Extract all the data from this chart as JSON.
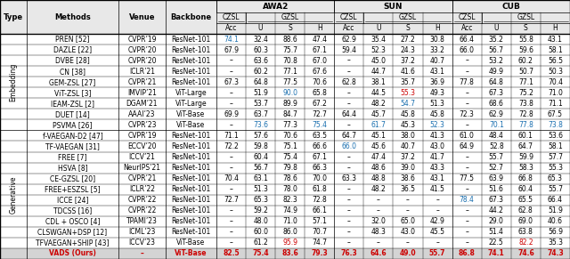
{
  "embedding_rows": [
    {
      "method": "PREN [52]",
      "ref_blue": true,
      "venue": "CVPR’19",
      "backbone": "ResNet-101",
      "awa2_czsl": "74.1",
      "awa2_u": "32.4",
      "awa2_s": "88.6",
      "awa2_h": "47.4",
      "sun_czsl": "62.9",
      "sun_u": "35.4",
      "sun_s": "27.2",
      "sun_h": "30.8",
      "cub_czsl": "66.4",
      "cub_u": "35.2",
      "cub_s": "55.8",
      "cub_h": "43.1",
      "awa2_czsl_blue": true
    },
    {
      "method": "DAZLE [22]",
      "ref_blue": true,
      "venue": "CVPR’20",
      "backbone": "ResNet-101",
      "awa2_czsl": "67.9",
      "awa2_u": "60.3",
      "awa2_s": "75.7",
      "awa2_h": "67.1",
      "sun_czsl": "59.4",
      "sun_u": "52.3",
      "sun_s": "24.3",
      "sun_h": "33.2",
      "cub_czsl": "66.0",
      "cub_u": "56.7",
      "cub_s": "59.6",
      "cub_h": "58.1"
    },
    {
      "method": "DVBE [28]",
      "ref_blue": true,
      "venue": "CVPR’20",
      "backbone": "ResNet-101",
      "awa2_czsl": "–",
      "awa2_u": "63.6",
      "awa2_s": "70.8",
      "awa2_h": "67.0",
      "sun_czsl": "–",
      "sun_u": "45.0",
      "sun_s": "37.2",
      "sun_h": "40.7",
      "cub_czsl": "–",
      "cub_u": "53.2",
      "cub_s": "60.2",
      "cub_h": "56.5"
    },
    {
      "method": "CN [38]",
      "ref_blue": true,
      "venue": "ICLR’21",
      "backbone": "ResNet-101",
      "awa2_czsl": "–",
      "awa2_u": "60.2",
      "awa2_s": "77.1",
      "awa2_h": "67.6",
      "sun_czsl": "–",
      "sun_u": "44.7",
      "sun_s": "41.6",
      "sun_h": "43.1",
      "cub_czsl": "–",
      "cub_u": "49.9",
      "cub_s": "50.7",
      "cub_h": "50.3"
    },
    {
      "method": "GEM-ZSL [27]",
      "ref_blue": true,
      "venue": "CVPR’21",
      "backbone": "ResNet-101",
      "awa2_czsl": "67.3",
      "awa2_u": "64.8",
      "awa2_s": "77.5",
      "awa2_h": "70.6",
      "sun_czsl": "62.8",
      "sun_u": "38.1",
      "sun_s": "35.7",
      "sun_h": "36.9",
      "cub_czsl": "77.8",
      "cub_u": "64.8",
      "cub_s": "77.1",
      "cub_h": "70.4"
    },
    {
      "method": "ViT-ZSL [3]",
      "ref_blue": true,
      "venue": "IMVIP’21",
      "backbone": "ViT-Large",
      "awa2_czsl": "–",
      "awa2_u": "51.9",
      "awa2_s": "90.0",
      "awa2_h": "65.8",
      "sun_czsl": "–",
      "sun_u": "44.5",
      "sun_s": "55.3",
      "sun_h": "49.3",
      "cub_czsl": "–",
      "cub_u": "67.3",
      "cub_s": "75.2",
      "cub_h": "71.0",
      "awa2_s_blue": true,
      "sun_s_red": true
    },
    {
      "method": "IEAM-ZSL [2]",
      "ref_blue": true,
      "venue": "DGAM’21",
      "backbone": "ViT-Large",
      "awa2_czsl": "–",
      "awa2_u": "53.7",
      "awa2_s": "89.9",
      "awa2_h": "67.2",
      "sun_czsl": "–",
      "sun_u": "48.2",
      "sun_s": "54.7",
      "sun_h": "51.3",
      "cub_czsl": "–",
      "cub_u": "68.6",
      "cub_s": "73.8",
      "cub_h": "71.1",
      "sun_s_blue": true
    },
    {
      "method": "DUET [14]",
      "ref_blue": true,
      "venue": "AAAI’23",
      "backbone": "ViT-Base",
      "awa2_czsl": "69.9",
      "awa2_u": "63.7",
      "awa2_s": "84.7",
      "awa2_h": "72.7",
      "sun_czsl": "64.4",
      "sun_u": "45.7",
      "sun_s": "45.8",
      "sun_h": "45.8",
      "cub_czsl": "72.3",
      "cub_u": "62.9",
      "cub_s": "72.8",
      "cub_h": "67.5"
    },
    {
      "method": "PSVMA [26]",
      "ref_blue": true,
      "venue": "CVPR’23",
      "backbone": "ViT-Base",
      "awa2_czsl": "–",
      "awa2_u": "73.6",
      "awa2_s": "77.3",
      "awa2_h": "75.4",
      "sun_czsl": "–",
      "sun_u": "61.7",
      "sun_s": "45.3",
      "sun_h": "52.3",
      "cub_czsl": "–",
      "cub_u": "70.1",
      "cub_s": "77.8",
      "cub_h": "73.8",
      "awa2_u_blue": true,
      "awa2_h_blue": true,
      "sun_u_blue": true,
      "sun_h_blue": true,
      "cub_u_blue": true,
      "cub_s_blue": true,
      "cub_h_blue": true
    }
  ],
  "generative_rows": [
    {
      "method": "f-VAEGAN-D2 [47]",
      "ref_blue": true,
      "venue": "CVPR’19",
      "backbone": "ResNet-101",
      "awa2_czsl": "71.1",
      "awa2_u": "57.6",
      "awa2_s": "70.6",
      "awa2_h": "63.5",
      "sun_czsl": "64.7",
      "sun_u": "45.1",
      "sun_s": "38.0",
      "sun_h": "41.3",
      "cub_czsl": "61.0",
      "cub_u": "48.4",
      "cub_s": "60.1",
      "cub_h": "53.6"
    },
    {
      "method": "TF-VAEGAN [31]",
      "ref_blue": true,
      "venue": "ECCV’20",
      "backbone": "ResNet-101",
      "awa2_czsl": "72.2",
      "awa2_u": "59.8",
      "awa2_s": "75.1",
      "awa2_h": "66.6",
      "sun_czsl": "66.0",
      "sun_u": "45.6",
      "sun_s": "40.7",
      "sun_h": "43.0",
      "cub_czsl": "64.9",
      "cub_u": "52.8",
      "cub_s": "64.7",
      "cub_h": "58.1",
      "sun_czsl_blue": true
    },
    {
      "method": "FREE [7]",
      "ref_blue": true,
      "venue": "ICCV’21",
      "backbone": "ResNet-101",
      "awa2_czsl": "–",
      "awa2_u": "60.4",
      "awa2_s": "75.4",
      "awa2_h": "67.1",
      "sun_czsl": "–",
      "sun_u": "47.4",
      "sun_s": "37.2",
      "sun_h": "41.7",
      "cub_czsl": "–",
      "cub_u": "55.7",
      "cub_s": "59.9",
      "cub_h": "57.7"
    },
    {
      "method": "HSVA [8]",
      "ref_blue": true,
      "venue": "NeurIPS’21",
      "backbone": "ResNet-101",
      "awa2_czsl": "–",
      "awa2_u": "56.7",
      "awa2_s": "79.8",
      "awa2_h": "66.3",
      "sun_czsl": "–",
      "sun_u": "48.6",
      "sun_s": "39.0",
      "sun_h": "43.3",
      "cub_czsl": "–",
      "cub_u": "52.7",
      "cub_s": "58.3",
      "cub_h": "55.3"
    },
    {
      "method": "CE-GZSL [20]",
      "ref_blue": true,
      "venue": "CVPR’21",
      "backbone": "ResNet-101",
      "awa2_czsl": "70.4",
      "awa2_u": "63.1",
      "awa2_s": "78.6",
      "awa2_h": "70.0",
      "sun_czsl": "63.3",
      "sun_u": "48.8",
      "sun_s": "38.6",
      "sun_h": "43.1",
      "cub_czsl": "77.5",
      "cub_u": "63.9",
      "cub_s": "66.8",
      "cub_h": "65.3"
    },
    {
      "method": "FREE+ESZSL [5]",
      "ref_blue": true,
      "venue": "ICLR’22",
      "backbone": "ResNet-101",
      "awa2_czsl": "–",
      "awa2_u": "51.3",
      "awa2_s": "78.0",
      "awa2_h": "61.8",
      "sun_czsl": "–",
      "sun_u": "48.2",
      "sun_s": "36.5",
      "sun_h": "41.5",
      "cub_czsl": "–",
      "cub_u": "51.6",
      "cub_s": "60.4",
      "cub_h": "55.7"
    },
    {
      "method": "ICCE [24]",
      "ref_blue": true,
      "venue": "CVPR’22",
      "backbone": "ResNet-101",
      "awa2_czsl": "72.7",
      "awa2_u": "65.3",
      "awa2_s": "82.3",
      "awa2_h": "72.8",
      "sun_czsl": "–",
      "sun_u": "–",
      "sun_s": "–",
      "sun_h": "–",
      "cub_czsl": "78.4",
      "cub_u": "67.3",
      "cub_s": "65.5",
      "cub_h": "66.4",
      "cub_czsl_blue": true
    },
    {
      "method": "TDCSS [16]",
      "ref_blue": true,
      "venue": "CVPR’22",
      "backbone": "ResNet-101",
      "awa2_czsl": "–",
      "awa2_u": "59.2",
      "awa2_s": "74.9",
      "awa2_h": "66.1",
      "sun_czsl": "–",
      "sun_u": "–",
      "sun_s": "–",
      "sun_h": "–",
      "cub_czsl": "–",
      "cub_u": "44.2",
      "cub_s": "62.8",
      "cub_h": "51.9"
    },
    {
      "method": "CDL + OSCO [4]",
      "ref_blue": true,
      "venue": "TPAMI’23",
      "backbone": "ResNet-101",
      "awa2_czsl": "–",
      "awa2_u": "48.0",
      "awa2_s": "71.0",
      "awa2_h": "57.1",
      "sun_czsl": "–",
      "sun_u": "32.0",
      "sun_s": "65.0",
      "sun_h": "42.9",
      "cub_czsl": "–",
      "cub_u": "29.0",
      "cub_s": "69.0",
      "cub_h": "40.6"
    },
    {
      "method": "CLSWGAN+DSP [12]",
      "ref_blue": true,
      "venue": "ICML’23",
      "backbone": "ResNet-101",
      "awa2_czsl": "–",
      "awa2_u": "60.0",
      "awa2_s": "86.0",
      "awa2_h": "70.7",
      "sun_czsl": "–",
      "sun_u": "48.3",
      "sun_s": "43.0",
      "sun_h": "45.5",
      "cub_czsl": "–",
      "cub_u": "51.4",
      "cub_s": "63.8",
      "cub_h": "56.9"
    },
    {
      "method": "TFVAEGAN+SHIP [43]",
      "ref_blue": true,
      "venue": "ICCV’23",
      "backbone": "ViT-Base",
      "awa2_czsl": "–",
      "awa2_u": "61.2",
      "awa2_s": "95.9",
      "awa2_h": "74.7",
      "sun_czsl": "–",
      "sun_u": "–",
      "sun_s": "–",
      "sun_h": "–",
      "cub_czsl": "–",
      "cub_u": "22.5",
      "cub_s": "82.2",
      "cub_h": "35.3",
      "awa2_s_red": true,
      "cub_s_red": true
    },
    {
      "method": "VADS (Ours)",
      "ref_blue": false,
      "venue": "–",
      "backbone": "ViT-Base",
      "awa2_czsl": "82.5",
      "awa2_u": "75.4",
      "awa2_s": "83.6",
      "awa2_h": "79.3",
      "sun_czsl": "76.3",
      "sun_u": "64.6",
      "sun_s": "49.0",
      "sun_h": "55.7",
      "cub_czsl": "86.8",
      "cub_u": "74.1",
      "cub_s": "74.6",
      "cub_h": "74.3",
      "all_red": true,
      "bold": true
    }
  ],
  "colors": {
    "blue": "#1a6faf",
    "red": "#cc0000",
    "header_bg": "#e8e8e8",
    "last_row_bg": "#d4d4d4",
    "white": "#ffffff"
  }
}
